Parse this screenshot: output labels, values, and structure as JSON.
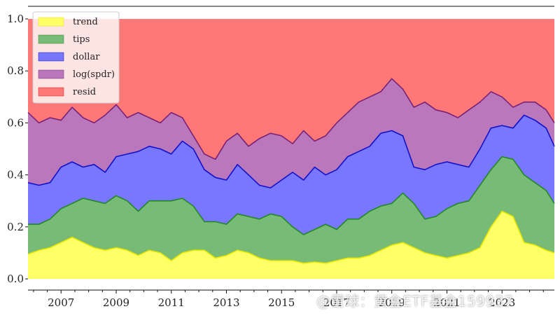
{
  "chart_data": {
    "type": "area",
    "stacked": true,
    "title": "",
    "xlabel": "",
    "ylabel": "",
    "xlim": [
      2005.8,
      2024.9
    ],
    "ylim": [
      0.0,
      1.0
    ],
    "x_tick_labels": [
      "2007",
      "2009",
      "2011",
      "2013",
      "2015",
      "2017",
      "2019",
      "2021",
      "2023"
    ],
    "y_tick_labels": [
      "0.0",
      "0.2",
      "0.4",
      "0.6",
      "0.8",
      "1.0"
    ],
    "legend": {
      "placement": "top-left",
      "entries": [
        "trend",
        "tips",
        "dollar",
        "log(spdr)",
        "resid"
      ]
    },
    "x": [
      2005.8,
      2006.2,
      2006.6,
      2007.0,
      2007.4,
      2007.8,
      2008.2,
      2008.6,
      2009.0,
      2009.4,
      2009.8,
      2010.2,
      2010.6,
      2011.0,
      2011.4,
      2011.8,
      2012.2,
      2012.6,
      2013.0,
      2013.4,
      2013.8,
      2014.2,
      2014.6,
      2015.0,
      2015.4,
      2015.8,
      2016.2,
      2016.6,
      2017.0,
      2017.4,
      2017.8,
      2018.2,
      2018.6,
      2019.0,
      2019.4,
      2019.8,
      2020.2,
      2020.6,
      2021.0,
      2021.4,
      2021.8,
      2022.2,
      2022.6,
      2023.0,
      2023.4,
      2023.8,
      2024.2,
      2024.6,
      2024.9
    ],
    "series": [
      {
        "name": "trend",
        "color": "#ffff66",
        "edge": "#e6e600",
        "values": [
          0.095,
          0.11,
          0.12,
          0.14,
          0.16,
          0.14,
          0.12,
          0.11,
          0.12,
          0.11,
          0.09,
          0.11,
          0.1,
          0.07,
          0.1,
          0.11,
          0.11,
          0.08,
          0.09,
          0.11,
          0.1,
          0.08,
          0.07,
          0.07,
          0.07,
          0.06,
          0.065,
          0.06,
          0.07,
          0.08,
          0.08,
          0.09,
          0.11,
          0.13,
          0.14,
          0.12,
          0.1,
          0.09,
          0.08,
          0.09,
          0.1,
          0.12,
          0.2,
          0.26,
          0.24,
          0.14,
          0.13,
          0.11,
          0.1
        ]
      },
      {
        "name": "tips",
        "color": "#77bb77",
        "edge": "#228822",
        "values": [
          0.21,
          0.21,
          0.23,
          0.27,
          0.29,
          0.31,
          0.3,
          0.29,
          0.32,
          0.3,
          0.26,
          0.3,
          0.3,
          0.3,
          0.31,
          0.28,
          0.22,
          0.22,
          0.21,
          0.25,
          0.24,
          0.23,
          0.25,
          0.24,
          0.2,
          0.17,
          0.19,
          0.21,
          0.19,
          0.23,
          0.23,
          0.26,
          0.28,
          0.29,
          0.33,
          0.29,
          0.23,
          0.24,
          0.27,
          0.29,
          0.3,
          0.36,
          0.42,
          0.47,
          0.46,
          0.4,
          0.37,
          0.34,
          0.29
        ]
      },
      {
        "name": "dollar",
        "color": "#7777ff",
        "edge": "#1111cc",
        "values": [
          0.37,
          0.36,
          0.37,
          0.43,
          0.45,
          0.43,
          0.44,
          0.41,
          0.47,
          0.48,
          0.49,
          0.51,
          0.5,
          0.48,
          0.53,
          0.5,
          0.42,
          0.39,
          0.38,
          0.44,
          0.4,
          0.36,
          0.35,
          0.38,
          0.41,
          0.38,
          0.43,
          0.4,
          0.42,
          0.47,
          0.49,
          0.51,
          0.56,
          0.57,
          0.55,
          0.43,
          0.42,
          0.44,
          0.45,
          0.44,
          0.43,
          0.5,
          0.58,
          0.59,
          0.58,
          0.63,
          0.61,
          0.58,
          0.51
        ]
      },
      {
        "name": "log(spdr)",
        "color": "#bb77bb",
        "edge": "#772277",
        "values": [
          0.64,
          0.6,
          0.62,
          0.61,
          0.66,
          0.62,
          0.6,
          0.63,
          0.67,
          0.62,
          0.64,
          0.62,
          0.6,
          0.64,
          0.62,
          0.55,
          0.48,
          0.46,
          0.53,
          0.56,
          0.51,
          0.54,
          0.56,
          0.55,
          0.52,
          0.57,
          0.53,
          0.55,
          0.6,
          0.64,
          0.68,
          0.7,
          0.72,
          0.77,
          0.73,
          0.66,
          0.68,
          0.65,
          0.64,
          0.62,
          0.65,
          0.68,
          0.72,
          0.7,
          0.66,
          0.68,
          0.68,
          0.65,
          0.6
        ]
      },
      {
        "name": "resid",
        "color": "#ff7777",
        "edge": "#cc2222",
        "values": [
          1.0,
          1.0,
          1.0,
          1.0,
          1.0,
          1.0,
          1.0,
          1.0,
          1.0,
          1.0,
          1.0,
          1.0,
          1.0,
          1.0,
          1.0,
          1.0,
          1.0,
          1.0,
          1.0,
          1.0,
          1.0,
          1.0,
          1.0,
          1.0,
          1.0,
          1.0,
          1.0,
          1.0,
          1.0,
          1.0,
          1.0,
          1.0,
          1.0,
          1.0,
          1.0,
          1.0,
          1.0,
          1.0,
          1.0,
          1.0,
          1.0,
          1.0,
          1.0,
          1.0,
          1.0,
          1.0,
          1.0,
          1.0,
          1.0
        ]
      }
    ]
  },
  "watermark": {
    "text": "@雪球：黄金ETF基金159937"
  }
}
